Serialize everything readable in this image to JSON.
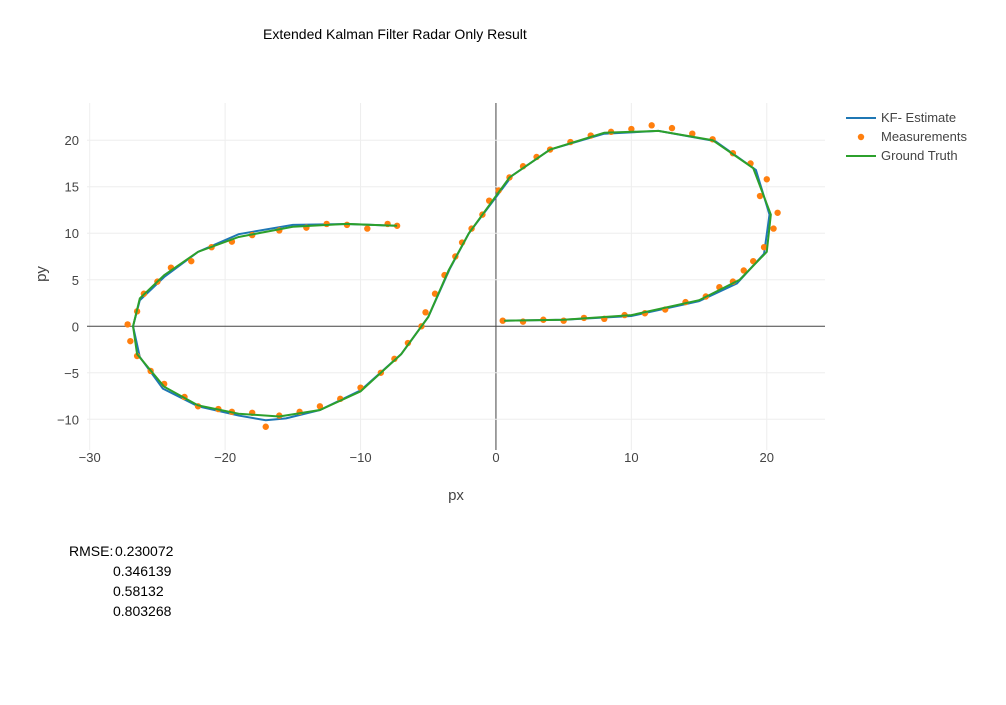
{
  "chart_data": {
    "type": "scatter",
    "title": "Extended Kalman Filter Radar Only Result",
    "x_label": "px",
    "y_label": "py",
    "xlim": [
      -30.2,
      24.3
    ],
    "ylim": [
      -13.3,
      24
    ],
    "xticks": [
      {
        "value": -30,
        "label": "−30"
      },
      {
        "value": -20,
        "label": "−20"
      },
      {
        "value": -10,
        "label": "−10"
      },
      0,
      10,
      20
    ],
    "yticks": [
      {
        "value": -10,
        "label": "−10"
      },
      {
        "value": -5,
        "label": "−5"
      },
      0,
      5,
      10,
      15,
      20
    ],
    "grid": true,
    "legend": "top-right",
    "series": [
      {
        "name": "KF- Estimate",
        "color": "#1f77b4",
        "mode": "line",
        "x": [
          0.6,
          5,
          10,
          15,
          17.8,
          19.8,
          20.2,
          19.2,
          16.2,
          12,
          8,
          4,
          1.2,
          -0.4,
          -2,
          -3.4,
          -5,
          -7,
          -10,
          -13,
          -15.5,
          -17,
          -19,
          -22,
          -24.6,
          -26.3,
          -26.8,
          -26.3,
          -24.5,
          -22,
          -19,
          -15,
          -11,
          -7.3
        ],
        "values": [
          0.6,
          0.7,
          1.1,
          2.7,
          4.6,
          7.8,
          12,
          16.8,
          19.9,
          21,
          20.7,
          19,
          16.2,
          13.1,
          10,
          6.2,
          1,
          -3,
          -6.9,
          -9,
          -9.9,
          -10.1,
          -9.6,
          -8.6,
          -6.7,
          -3.3,
          0,
          2.8,
          5.3,
          8,
          9.9,
          10.9,
          11,
          10.8
        ]
      },
      {
        "name": "Measurements",
        "color": "#ff7f0e",
        "mode": "markers",
        "x": [
          0.5,
          2,
          3.5,
          5,
          6.5,
          8,
          9.5,
          11,
          12.5,
          14,
          15.5,
          16.5,
          17.5,
          18.3,
          19,
          19.8,
          20.5,
          20.8,
          19.5,
          20,
          18.8,
          17.5,
          16,
          14.5,
          13,
          11.5,
          10,
          8.5,
          7,
          5.5,
          4,
          3,
          2,
          1,
          0.2,
          -0.5,
          -1,
          -1.8,
          -2.5,
          -3,
          -3.8,
          -4.5,
          -5.2,
          -5.5,
          -6.5,
          -7.5,
          -8.5,
          -10,
          -11.5,
          -13,
          -14.5,
          -16,
          -17,
          -18,
          -19.5,
          -20.5,
          -22,
          -23,
          -24.5,
          -25.5,
          -26.5,
          -27,
          -27.2,
          -26.5,
          -26,
          -25,
          -24,
          -22.5,
          -21,
          -19.5,
          -18,
          -16,
          -14,
          -12.5,
          -11,
          -9.5,
          -8,
          -7.3
        ],
        "values": [
          0.6,
          0.5,
          0.7,
          0.6,
          0.9,
          0.8,
          1.2,
          1.4,
          1.8,
          2.6,
          3.2,
          4.2,
          4.8,
          6,
          7,
          8.5,
          10.5,
          12.2,
          14,
          15.8,
          17.5,
          18.6,
          20.1,
          20.7,
          21.3,
          21.6,
          21.2,
          20.9,
          20.5,
          19.8,
          19,
          18.2,
          17.2,
          16,
          14.6,
          13.5,
          12,
          10.5,
          9,
          7.5,
          5.5,
          3.5,
          1.5,
          0,
          -1.8,
          -3.5,
          -5,
          -6.6,
          -7.8,
          -8.6,
          -9.2,
          -9.6,
          -10.8,
          -9.3,
          -9.2,
          -8.9,
          -8.6,
          -7.6,
          -6.2,
          -4.8,
          -3.2,
          -1.6,
          0.2,
          1.6,
          3.5,
          4.8,
          6.3,
          7,
          8.5,
          9.1,
          9.8,
          10.3,
          10.6,
          11,
          10.9,
          10.5,
          11,
          10.8
        ]
      },
      {
        "name": "Ground Truth",
        "color": "#2ca02c",
        "mode": "line",
        "x": [
          0.6,
          5,
          10,
          15,
          18,
          20,
          20.3,
          19,
          16,
          12,
          8,
          4,
          1,
          -0.5,
          -2,
          -3.5,
          -5,
          -7,
          -10,
          -13,
          -16,
          -19,
          -22,
          -24.5,
          -26.5,
          -26.8,
          -26.3,
          -24.5,
          -22,
          -19,
          -15,
          -11,
          -7.3
        ],
        "values": [
          0.6,
          0.7,
          1.2,
          2.8,
          5,
          8,
          12,
          17,
          20,
          21,
          20.8,
          19,
          16,
          13,
          10,
          6,
          1,
          -3,
          -7,
          -9,
          -9.7,
          -9.4,
          -8.5,
          -6.5,
          -3,
          0,
          3,
          5.5,
          8,
          9.6,
          10.7,
          11,
          10.8
        ]
      }
    ],
    "rmse_label": "RMSE:",
    "rmse": [
      0.230072,
      0.346139,
      0.58132,
      0.803268
    ]
  }
}
